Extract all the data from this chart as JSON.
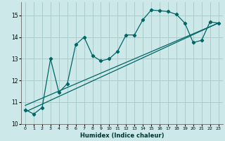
{
  "title": "",
  "xlabel": "Humidex (Indice chaleur)",
  "bg_color": "#cce8e8",
  "grid_color": "#aacccc",
  "line_color": "#006666",
  "xlim": [
    -0.5,
    23.5
  ],
  "ylim": [
    10.0,
    15.6
  ],
  "yticks": [
    10,
    11,
    12,
    13,
    14,
    15
  ],
  "xticks": [
    0,
    1,
    2,
    3,
    4,
    5,
    6,
    7,
    8,
    9,
    10,
    11,
    12,
    13,
    14,
    15,
    16,
    17,
    18,
    19,
    20,
    21,
    22,
    23
  ],
  "curve1_x": [
    0,
    1,
    2,
    3,
    4,
    5,
    6,
    7,
    8,
    9,
    10,
    11,
    12,
    13,
    14,
    15,
    16,
    17,
    18,
    19,
    20,
    21,
    22,
    23
  ],
  "curve1_y": [
    10.65,
    10.45,
    10.75,
    13.0,
    11.45,
    11.85,
    13.65,
    14.0,
    13.15,
    12.9,
    13.0,
    13.35,
    14.1,
    14.1,
    14.8,
    15.25,
    15.22,
    15.18,
    15.05,
    14.65,
    13.75,
    13.85,
    14.7,
    14.65
  ],
  "line1_x": [
    0,
    23
  ],
  "line1_y": [
    10.55,
    14.65
  ],
  "line2_x": [
    0,
    23
  ],
  "line2_y": [
    10.85,
    14.65
  ]
}
